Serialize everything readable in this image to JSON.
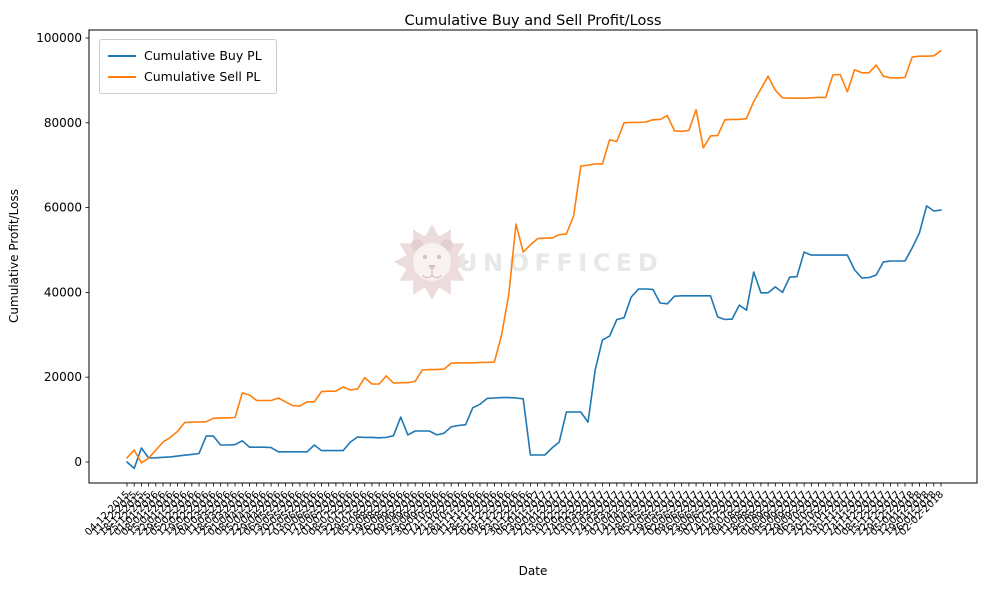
{
  "figure": {
    "background": "#ffffff"
  },
  "watermark": {
    "text": "UNOFFICED",
    "text_color": "#d6d6d6",
    "lion_color": "#dfc0c0"
  },
  "chart_data": {
    "type": "line",
    "title": "Cumulative Buy and Sell Profit/Loss",
    "xlabel": "Date",
    "ylabel": "Cumulative Profit/Loss",
    "ylim": [
      -5000,
      102000
    ],
    "yticks": [
      0,
      20000,
      40000,
      60000,
      80000,
      100000
    ],
    "grid": false,
    "legend_position": "upper left",
    "x_tick_rotation": 45,
    "x": [
      "04-12-2015",
      "11-12-2015",
      "18-12-2015",
      "25-12-2015",
      "01-01-2016",
      "08-01-2016",
      "15-01-2016",
      "22-01-2016",
      "29-01-2016",
      "05-02-2016",
      "12-02-2016",
      "19-02-2016",
      "26-02-2016",
      "04-03-2016",
      "11-03-2016",
      "18-03-2016",
      "25-03-2016",
      "01-04-2016",
      "08-04-2016",
      "15-04-2016",
      "22-04-2016",
      "29-04-2016",
      "06-05-2016",
      "13-05-2016",
      "20-05-2016",
      "27-05-2016",
      "03-06-2016",
      "10-06-2016",
      "17-06-2016",
      "24-06-2016",
      "01-07-2016",
      "08-07-2016",
      "15-07-2016",
      "22-07-2016",
      "29-07-2016",
      "05-08-2016",
      "12-08-2016",
      "19-08-2016",
      "26-08-2016",
      "02-09-2016",
      "09-09-2016",
      "16-09-2016",
      "23-09-2016",
      "30-09-2016",
      "07-10-2016",
      "14-10-2016",
      "21-10-2016",
      "28-10-2016",
      "04-11-2016",
      "11-11-2016",
      "18-11-2016",
      "25-11-2016",
      "02-12-2016",
      "09-12-2016",
      "16-12-2016",
      "23-12-2016",
      "30-12-2016",
      "06-01-2017",
      "13-01-2017",
      "20-01-2017",
      "27-01-2017",
      "03-02-2017",
      "10-02-2017",
      "17-02-2017",
      "24-02-2017",
      "03-03-2017",
      "10-03-2017",
      "17-03-2017",
      "24-03-2017",
      "31-03-2017",
      "07-04-2017",
      "14-04-2017",
      "21-04-2017",
      "28-04-2017",
      "05-05-2017",
      "12-05-2017",
      "19-05-2017",
      "26-05-2017",
      "02-06-2017",
      "09-06-2017",
      "16-06-2017",
      "23-06-2017",
      "30-06-2017",
      "07-07-2017",
      "14-07-2017",
      "21-07-2017",
      "28-07-2017",
      "04-08-2017",
      "11-08-2017",
      "18-08-2017",
      "25-08-2017",
      "01-09-2017",
      "08-09-2017",
      "15-09-2017",
      "22-09-2017",
      "29-09-2017",
      "06-10-2017",
      "13-10-2017",
      "20-10-2017",
      "27-10-2017",
      "03-11-2017",
      "10-11-2017",
      "17-11-2017",
      "24-11-2017",
      "01-12-2017",
      "08-12-2017",
      "15-12-2017",
      "22-12-2017",
      "29-12-2017",
      "05-01-2018",
      "12-01-2018",
      "19-01-2018",
      "26-01-2018",
      "02-02-2018"
    ],
    "series": [
      {
        "name": "Cumulative Buy PL",
        "color": "#1f77b4",
        "values": [
          0,
          -1500,
          3300,
          950,
          1000,
          1100,
          1200,
          1400,
          1600,
          1800,
          2000,
          6100,
          6100,
          4000,
          4000,
          4100,
          5000,
          3500,
          3500,
          3500,
          3400,
          2400,
          2400,
          2400,
          2400,
          2400,
          4000,
          2700,
          2700,
          2700,
          2700,
          4700,
          5900,
          5800,
          5800,
          5700,
          5800,
          6200,
          10600,
          6400,
          7300,
          7300,
          7300,
          6400,
          6800,
          8300,
          8600,
          8800,
          12800,
          13600,
          15000,
          15100,
          15200,
          15200,
          15100,
          14900,
          1650,
          1650,
          1650,
          3300,
          4700,
          11800,
          11800,
          11800,
          9400,
          21700,
          28800,
          29700,
          33600,
          34000,
          38900,
          40800,
          40800,
          40700,
          37500,
          37300,
          39100,
          39200,
          39200,
          39200,
          39200,
          39200,
          34200,
          33600,
          33700,
          37000,
          35800,
          44800,
          39900,
          39900,
          41300,
          40000,
          43600,
          43700,
          49500,
          48800,
          48800,
          48800,
          48800,
          48800,
          48800,
          45300,
          43400,
          43500,
          44100,
          47200,
          47400,
          47400,
          47400,
          50500,
          54000,
          60400,
          59200,
          59400
        ]
      },
      {
        "name": "Cumulative Sell PL",
        "color": "#ff7f0e",
        "values": [
          1000,
          2800,
          -200,
          900,
          2800,
          4700,
          5800,
          7200,
          9300,
          9400,
          9400,
          9500,
          10300,
          10400,
          10400,
          10500,
          16300,
          15800,
          14500,
          14500,
          14500,
          15100,
          14200,
          13300,
          13200,
          14200,
          14200,
          16600,
          16700,
          16700,
          17700,
          17000,
          17200,
          19900,
          18400,
          18400,
          20300,
          18600,
          18700,
          18700,
          19000,
          21700,
          21800,
          21800,
          21900,
          23300,
          23400,
          23400,
          23400,
          23500,
          23500,
          23600,
          30000,
          39500,
          56100,
          49500,
          51200,
          52700,
          52800,
          52800,
          53600,
          53800,
          58000,
          69800,
          70000,
          70300,
          70300,
          76000,
          75600,
          80000,
          80100,
          80100,
          80200,
          80700,
          80800,
          81700,
          78100,
          78000,
          78200,
          83100,
          74100,
          76900,
          77000,
          80700,
          80800,
          80800,
          81000,
          85000,
          88000,
          91000,
          87700,
          85900,
          85800,
          85800,
          85800,
          85900,
          86000,
          86000,
          91300,
          91400,
          87300,
          92500,
          91800,
          91800,
          93600,
          91000,
          90600,
          90600,
          90700,
          95500,
          95700,
          95700,
          95800,
          97000
        ]
      }
    ]
  }
}
